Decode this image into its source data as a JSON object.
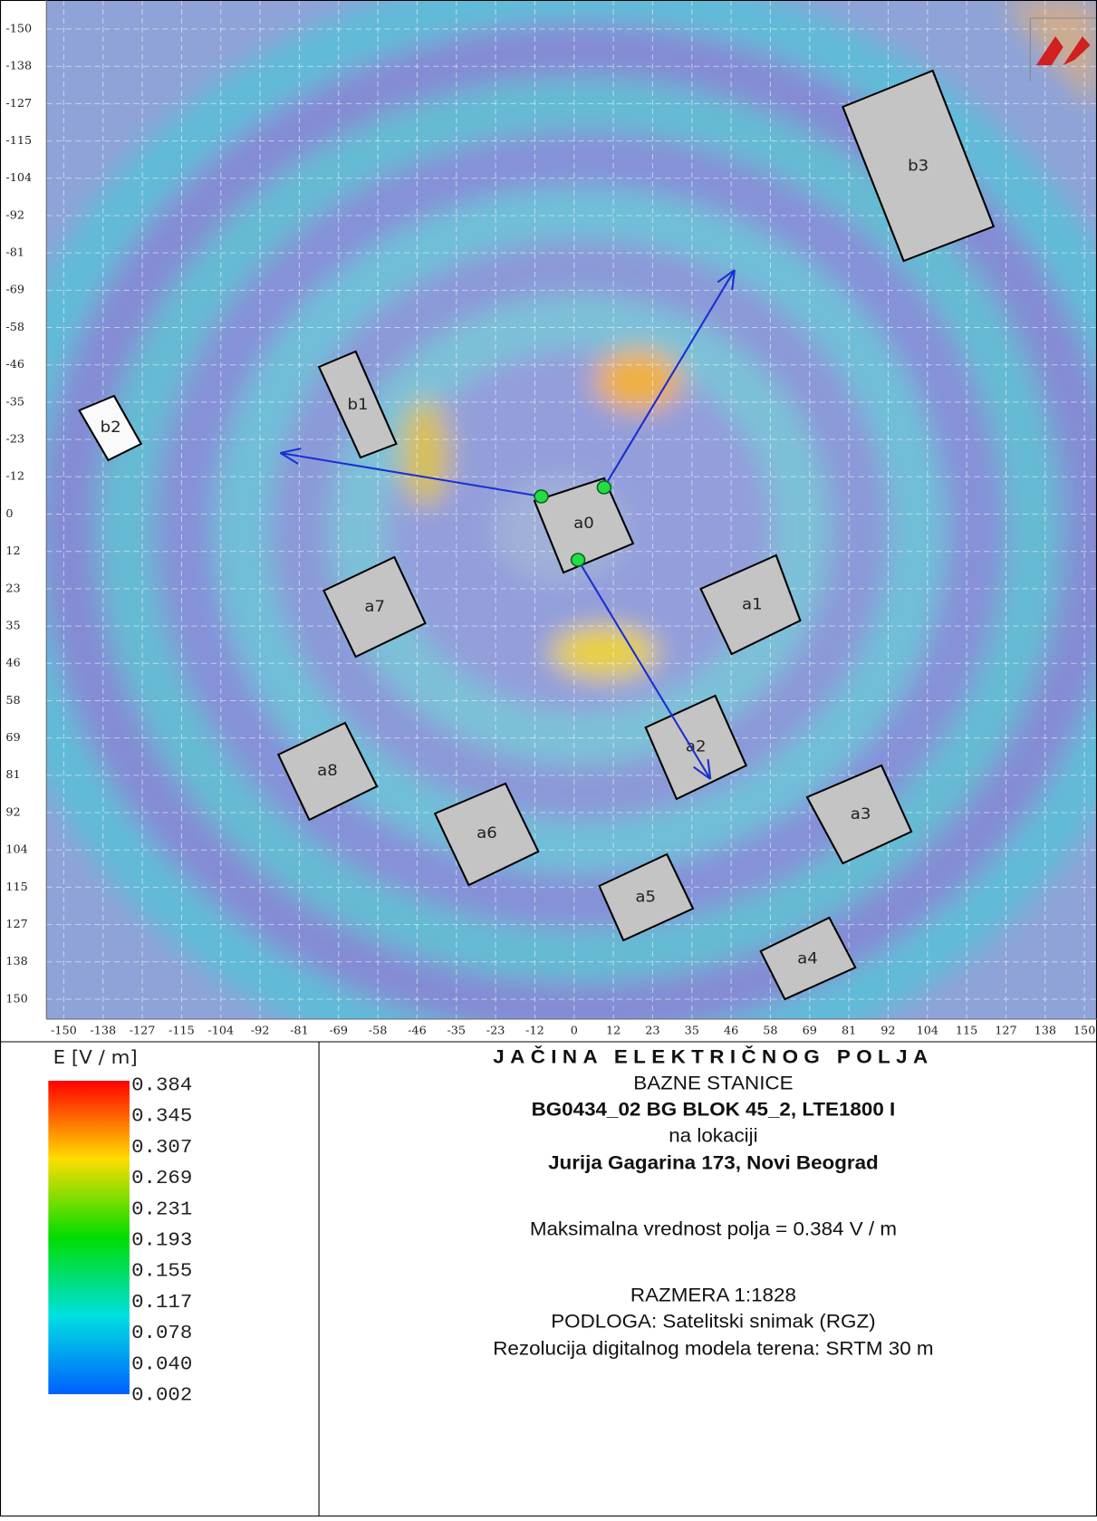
{
  "axes": {
    "x_ticks": [
      -150,
      -138,
      -127,
      -115,
      -104,
      -92,
      -81,
      -69,
      -58,
      -46,
      -35,
      -23,
      -12,
      0,
      12,
      23,
      35,
      46,
      58,
      69,
      81,
      92,
      104,
      115,
      127,
      138,
      150
    ],
    "y_ticks": [
      -150,
      -138,
      -127,
      -115,
      -104,
      -92,
      -81,
      -69,
      -58,
      -46,
      -35,
      -23,
      -12,
      0,
      12,
      23,
      35,
      46,
      58,
      69,
      81,
      92,
      104,
      115,
      127,
      138,
      150
    ]
  },
  "buildings": [
    {
      "label": "a0"
    },
    {
      "label": "a1"
    },
    {
      "label": "a2"
    },
    {
      "label": "a3"
    },
    {
      "label": "a4"
    },
    {
      "label": "a5"
    },
    {
      "label": "a6"
    },
    {
      "label": "a7"
    },
    {
      "label": "a8"
    },
    {
      "label": "b1"
    },
    {
      "label": "b2"
    },
    {
      "label": "b3"
    }
  ],
  "legend": {
    "title": "E [V / m]",
    "labels": [
      "0.384",
      "0.345",
      "0.307",
      "0.269",
      "0.231",
      "0.193",
      "0.155",
      "0.117",
      "0.078",
      "0.040",
      "0.002"
    ]
  },
  "info": {
    "title": "JAČINA ELEKTRIČNOG POLJA",
    "subtitle": "BAZNE STANICE",
    "station": "BG0434_02 BG BLOK 45_2, LTE1800 I",
    "location_prefix": "na lokaciji",
    "address": "Jurija Gagarina 173, Novi Beograd",
    "max_value": "Maksimalna vrednost polja = 0.384 V / m",
    "scale": "RAZMERA 1:1828",
    "base": "PODLOGA: Satelitski snimak (RGZ)",
    "resolution": "Rezolucija digitalnog modela terena: SRTM 30 m"
  }
}
